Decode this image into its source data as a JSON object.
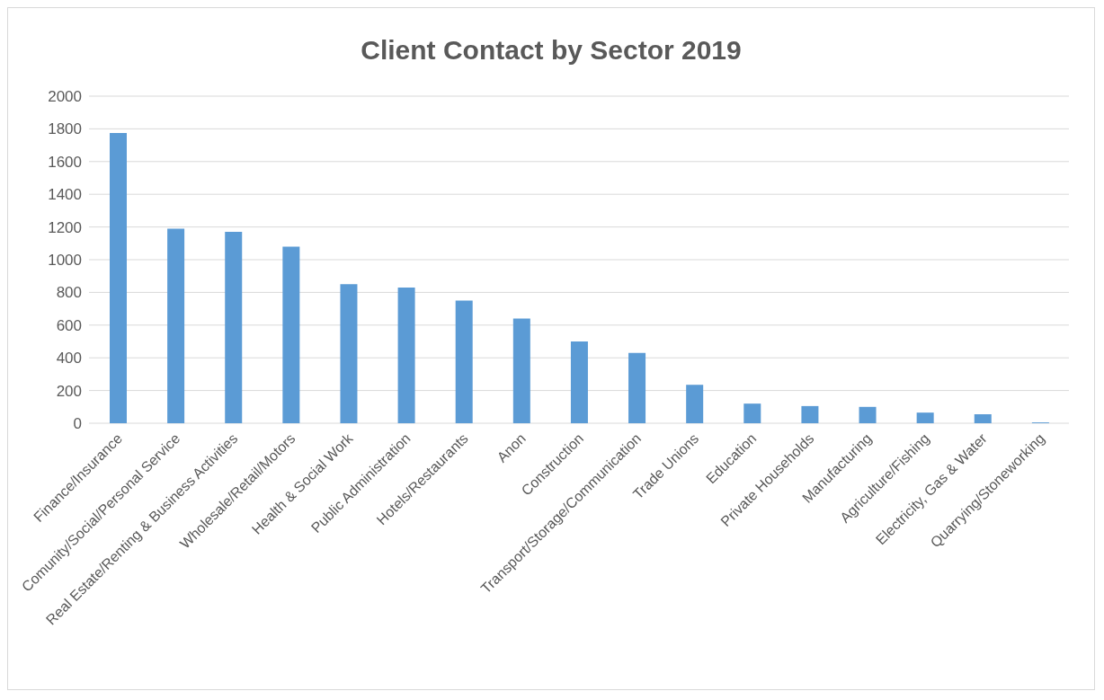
{
  "chart_data": {
    "type": "bar",
    "title": "Client Contact by Sector 2019",
    "categories": [
      "Finance/Insurance",
      "Comunity/Social/Personal Service",
      "Real Estate/Renting & Business Activities",
      "Wholesale/Retail/Motors",
      "Health & Social Work",
      "Public Administration",
      "Hotels/Restaurants",
      "Anon",
      "Construction",
      "Transport/Storage/Communication",
      "Trade Unions",
      "Education",
      "Private Households",
      "Manufacturing",
      "Agriculture/Fishing",
      "Electricity, Gas & Water",
      "Quarrying/Stoneworking"
    ],
    "values": [
      1775,
      1190,
      1170,
      1080,
      850,
      830,
      750,
      640,
      500,
      430,
      235,
      120,
      105,
      100,
      65,
      55,
      5
    ],
    "color": "#5b9bd5",
    "ylim": [
      0,
      2000
    ],
    "yticks": [
      0,
      200,
      400,
      600,
      800,
      1000,
      1200,
      1400,
      1600,
      1800,
      2000
    ],
    "grid": "y"
  }
}
